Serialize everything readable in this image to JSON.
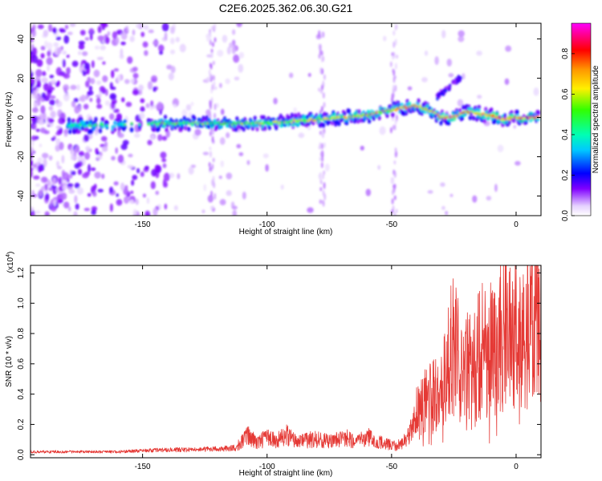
{
  "title": "C2E6.2025.362.06.30.G21",
  "chart_data": [
    {
      "type": "heatmap",
      "title": "C2E6.2025.362.06.30.G21",
      "xlabel": "Height of straight line (km)",
      "ylabel": "Frequency (Hz)",
      "xlim": [
        -195,
        10
      ],
      "ylim": [
        -50,
        48
      ],
      "xticks": [
        -150,
        -100,
        -50,
        0
      ],
      "xtick_labels": [
        "-150",
        "-100",
        "-50",
        "0"
      ],
      "yticks": [
        -40,
        -20,
        0,
        20,
        40
      ],
      "ytick_labels": [
        "-40",
        "-20",
        "0",
        "20",
        "40"
      ],
      "colorbar": {
        "label": "Normalized spectral amplitude",
        "range": [
          0,
          0.95
        ],
        "ticks": [
          0.0,
          0.2,
          0.4,
          0.6,
          0.8
        ],
        "tick_labels": [
          "0.0",
          "0.2",
          "0.4",
          "0.6",
          "0.8"
        ],
        "colormap": "rainbow (white-violet-blue-cyan-green-yellow-orange-red-magenta)"
      },
      "ridge": {
        "description": "main spectral ridge (frequency in Hz vs height in km)",
        "x": [
          -180,
          -170,
          -160,
          -150,
          -140,
          -130,
          -120,
          -110,
          -100,
          -90,
          -80,
          -70,
          -60,
          -50,
          -45,
          -40,
          -35,
          -30,
          -25,
          -20,
          -15,
          -10,
          -5,
          0,
          5,
          10
        ],
        "y": [
          -4,
          -4,
          -4,
          -3,
          -3,
          -3,
          -3,
          -3,
          -3,
          -2,
          -1,
          0,
          1,
          4,
          5,
          6,
          4,
          0,
          0,
          3,
          2,
          1,
          -1,
          0,
          0,
          0
        ]
      },
      "grid": false
    },
    {
      "type": "line",
      "xlabel": "Height of straight line (km)",
      "ylabel": "SNR (10 * v/v)",
      "y_multiplier_label": "(x10",
      "y_multiplier_exp": "4",
      "y_multiplier_close": ")",
      "xlim": [
        -195,
        10
      ],
      "ylim": [
        -0.02,
        1.25
      ],
      "xticks": [
        -150,
        -100,
        -50,
        0
      ],
      "xtick_labels": [
        "-150",
        "-100",
        "-50",
        "0"
      ],
      "yticks": [
        0.0,
        0.2,
        0.4,
        0.6,
        0.8,
        1.0,
        1.2
      ],
      "ytick_labels": [
        "0.0",
        "0.2",
        "0.4",
        "0.6",
        "0.8",
        "1.0",
        "1.2"
      ],
      "series_color": "#e53935",
      "grid": false,
      "series": [
        {
          "x": [
            -195,
            -180,
            -170,
            -160,
            -150,
            -140,
            -130,
            -120,
            -112,
            -108,
            -104,
            -100,
            -96,
            -92,
            -88,
            -84,
            -80,
            -76,
            -72,
            -68,
            -64,
            -60,
            -56,
            -52,
            -48,
            -44,
            -40,
            -36,
            -32,
            -28,
            -26,
            -24,
            -22,
            -20,
            -18,
            -16,
            -14,
            -12,
            -10,
            -8,
            -6,
            -4,
            -2,
            0,
            2,
            4,
            6,
            8,
            10
          ],
          "y": [
            0.03,
            0.03,
            0.03,
            0.03,
            0.04,
            0.05,
            0.05,
            0.06,
            0.07,
            0.16,
            0.1,
            0.14,
            0.12,
            0.16,
            0.1,
            0.12,
            0.13,
            0.11,
            0.12,
            0.14,
            0.1,
            0.15,
            0.11,
            0.09,
            0.07,
            0.12,
            0.3,
            0.35,
            0.4,
            0.5,
            0.75,
            0.68,
            0.5,
            0.6,
            0.55,
            0.62,
            0.7,
            0.66,
            0.74,
            0.65,
            0.8,
            0.82,
            0.78,
            0.8,
            0.85,
            0.8,
            0.9,
            0.95,
            1.0
          ]
        }
      ]
    }
  ]
}
